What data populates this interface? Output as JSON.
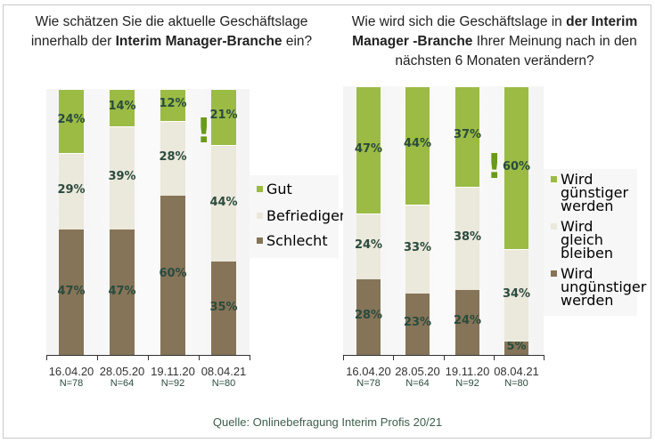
{
  "colors": {
    "gut": "#9bbb45",
    "mittel": "#ebe8dc",
    "schlecht": "#857458"
  },
  "chart_data": [
    {
      "type": "bar",
      "stacked": true,
      "title_parts": [
        "Wie schätzen Sie die aktuelle Geschäftslage innerhalb der ",
        "Interim Manager-Branche",
        " ein?"
      ],
      "categories": [
        "16.04.20",
        "28.05.20",
        "19.11.20",
        "08.04.21"
      ],
      "n": [
        "N=78",
        "N=64",
        "N=92",
        "N=80"
      ],
      "series": [
        {
          "name": "Schlecht",
          "values": [
            47,
            47,
            60,
            35
          ],
          "color": "#857458"
        },
        {
          "name": "Befriedigend",
          "values": [
            29,
            39,
            28,
            44
          ],
          "color": "#ebe8dc"
        },
        {
          "name": "Gut",
          "values": [
            24,
            14,
            12,
            21
          ],
          "color": "#9bbb45"
        }
      ],
      "legend": [
        "Gut",
        "Befriedigend",
        "Schlecht"
      ],
      "annotation": "!"
    },
    {
      "type": "bar",
      "stacked": true,
      "title_parts": [
        "Wie wird sich die Geschäftslage in ",
        "der Interim Manager -Branche",
        " Ihrer Meinung nach in den nächsten 6 Monaten verändern?"
      ],
      "categories": [
        "16.04.20",
        "28.05.20",
        "19.11.20",
        "08.04.21"
      ],
      "n": [
        "N=78",
        "N=64",
        "N=92",
        "N=80"
      ],
      "series": [
        {
          "name": "Wird ungünstiger werden",
          "values": [
            28,
            23,
            24,
            5
          ],
          "color": "#857458"
        },
        {
          "name": "Wird gleich bleiben",
          "values": [
            24,
            33,
            38,
            34
          ],
          "color": "#ebe8dc"
        },
        {
          "name": "Wird günstiger werden",
          "values": [
            47,
            44,
            37,
            60
          ],
          "color": "#9bbb45"
        }
      ],
      "legend": [
        "Wird günstiger werden",
        "Wird gleich bleiben",
        "Wird ungünstiger werden"
      ],
      "annotation": "!"
    }
  ],
  "source": "Quelle: Onlinebefragung Interim Profis 20/21"
}
